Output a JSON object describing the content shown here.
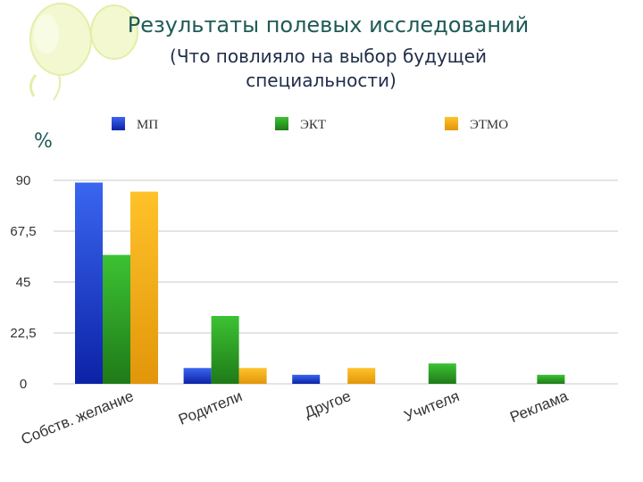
{
  "slide": {
    "title": "Результаты полевых исследований",
    "subtitle_line1": "(Что повлияло на выбор будущей",
    "subtitle_line2": "специальности)",
    "unit": "%"
  },
  "chart_data": {
    "type": "bar",
    "categories": [
      "Собств. желание",
      "Родители",
      "Другое",
      "Учителя",
      "Реклама"
    ],
    "series": [
      {
        "name": "МП",
        "color": "#1c3fd8",
        "values": [
          89,
          7,
          4,
          0,
          0
        ]
      },
      {
        "name": "ЭКТ",
        "color": "#2f9b26",
        "values": [
          57,
          30,
          0,
          9,
          4
        ]
      },
      {
        "name": "ЭТМО",
        "color": "#f2ac0c",
        "values": [
          85,
          7,
          7,
          0,
          0
        ]
      }
    ],
    "yticks": [
      "0",
      "22,5",
      "45",
      "67,5",
      "90"
    ],
    "ylim": [
      0,
      90
    ],
    "grid": true,
    "legend": "top"
  }
}
